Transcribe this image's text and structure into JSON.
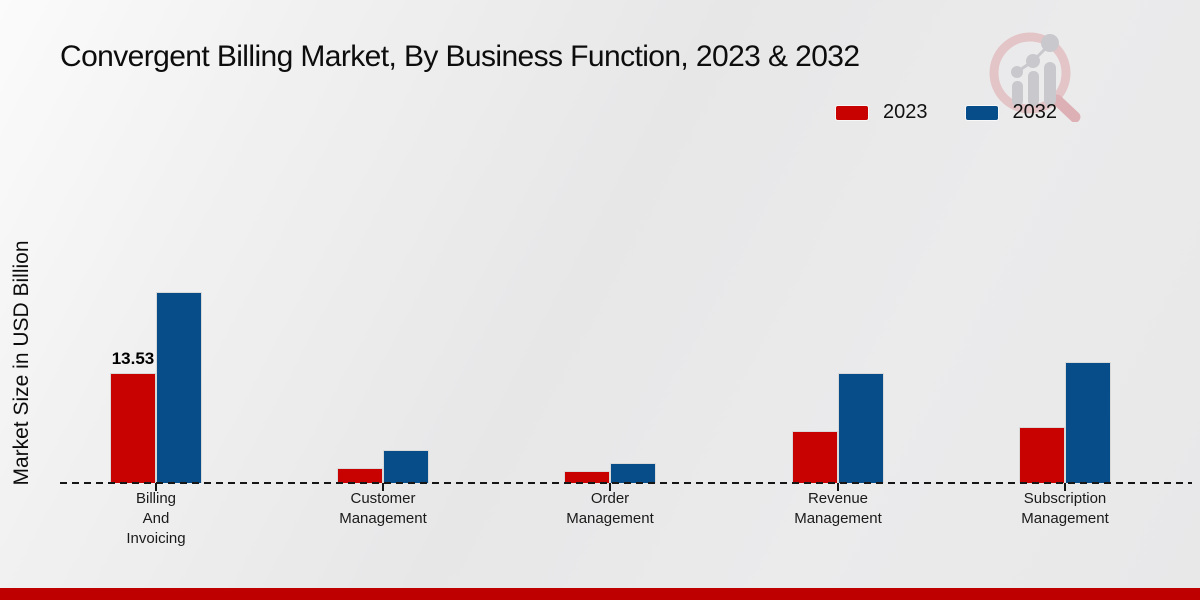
{
  "page": {
    "title": "Convergent Billing Market, By Business Function, 2023 & 2032",
    "y_axis_label": "Market Size in USD Billion"
  },
  "legend": {
    "items": [
      {
        "label": "2023",
        "color": "#c80101"
      },
      {
        "label": "2032",
        "color": "#074d8a"
      }
    ]
  },
  "icons": {
    "watermark": "magnifier-bar-chart-logo-icon"
  },
  "colors": {
    "series_2023": "#c80101",
    "series_2032": "#074d8a",
    "bottom_strip": "#bf0000",
    "axis": "#161616",
    "text": "#141414"
  },
  "chart_data": {
    "type": "bar",
    "title": "Convergent Billing Market, By Business Function, 2023 & 2032",
    "ylabel": "Market Size in USD Billion",
    "xlabel": "",
    "ylim": [
      0,
      25
    ],
    "grid": false,
    "legend_position": "top-right",
    "baseline_style": "dashed",
    "categories": [
      "Billing And Invoicing",
      "Customer Management",
      "Order Management",
      "Revenue Management",
      "Subscription Management"
    ],
    "category_label_lines": [
      [
        "Billing",
        "And",
        "Invoicing"
      ],
      [
        "Customer",
        "Management"
      ],
      [
        "Order",
        "Management"
      ],
      [
        "Revenue",
        "Management"
      ],
      [
        "Subscription",
        "Management"
      ]
    ],
    "series": [
      {
        "name": "2023",
        "color": "#c80101",
        "values": [
          13.53,
          1.85,
          1.5,
          6.4,
          6.85
        ]
      },
      {
        "name": "2032",
        "color": "#074d8a",
        "values": [
          23.5,
          4.05,
          2.45,
          13.5,
          14.85
        ]
      }
    ],
    "data_labels": [
      {
        "category_index": 0,
        "series": "2023",
        "text": "13.53"
      }
    ]
  }
}
